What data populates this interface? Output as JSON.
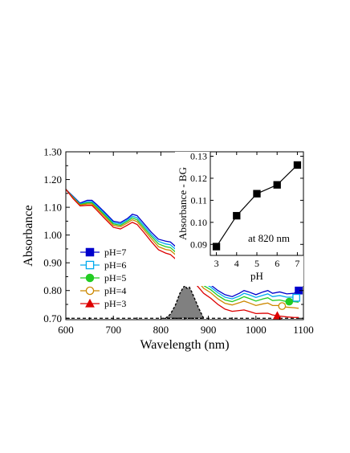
{
  "chart_data": [
    {
      "type": "line",
      "xlabel": "Wavelength (nm)",
      "ylabel": "Absorbance",
      "xlim": [
        600,
        1100
      ],
      "ylim": [
        0.695,
        1.3
      ],
      "xticks": [
        "600",
        "700",
        "800",
        "900",
        "1000",
        "1100"
      ],
      "xtick_values": [
        600,
        700,
        800,
        900,
        1000,
        1100
      ],
      "yticks": [
        "0.70",
        "0.80",
        "0.90",
        "1.00",
        "1.10",
        "1.20",
        "1.30"
      ],
      "ytick_values": [
        0.7,
        0.8,
        0.9,
        1.0,
        1.1,
        1.2,
        1.3
      ],
      "legend_position": "middle-left",
      "x": [
        600,
        615,
        630,
        645,
        655,
        665,
        680,
        700,
        715,
        730,
        740,
        750,
        765,
        780,
        795,
        810,
        820,
        830,
        845,
        860,
        875,
        890,
        905,
        920,
        935,
        950,
        965,
        975,
        985,
        1000,
        1015,
        1025,
        1035,
        1050,
        1065,
        1080,
        1090
      ],
      "series": [
        {
          "name": "pH=7",
          "color": "#0000cc",
          "marker": "filled-square",
          "values": [
            1.165,
            1.14,
            1.115,
            1.125,
            1.125,
            1.11,
            1.085,
            1.05,
            1.045,
            1.06,
            1.075,
            1.07,
            1.04,
            1.01,
            0.985,
            0.978,
            0.975,
            0.96,
            0.935,
            0.9,
            0.865,
            0.835,
            0.82,
            0.8,
            0.785,
            0.778,
            0.79,
            0.8,
            0.795,
            0.785,
            0.795,
            0.8,
            0.79,
            0.795,
            0.788,
            0.79,
            0.8
          ]
        },
        {
          "name": "pH=6",
          "color": "#00aaee",
          "marker": "open-square",
          "values": [
            1.165,
            1.138,
            1.112,
            1.12,
            1.12,
            1.105,
            1.08,
            1.045,
            1.04,
            1.055,
            1.068,
            1.062,
            1.032,
            1.002,
            0.977,
            0.968,
            0.965,
            0.95,
            0.925,
            0.892,
            0.858,
            0.828,
            0.812,
            0.792,
            0.776,
            0.77,
            0.78,
            0.79,
            0.785,
            0.775,
            0.783,
            0.788,
            0.778,
            0.782,
            0.776,
            0.776,
            0.772
          ]
        },
        {
          "name": "pH=5",
          "color": "#22cc22",
          "marker": "filled-circle",
          "values": [
            1.165,
            1.136,
            1.11,
            1.116,
            1.116,
            1.1,
            1.075,
            1.04,
            1.035,
            1.05,
            1.062,
            1.055,
            1.025,
            0.995,
            0.968,
            0.958,
            0.955,
            0.94,
            0.915,
            0.882,
            0.848,
            0.818,
            0.803,
            0.782,
            0.766,
            0.76,
            0.77,
            0.778,
            0.772,
            0.762,
            0.77,
            0.774,
            0.764,
            0.766,
            0.76,
            0.76,
            0.758
          ]
        },
        {
          "name": "pH=4",
          "color": "#cc8800",
          "marker": "open-circle",
          "values": [
            1.165,
            1.134,
            1.108,
            1.112,
            1.112,
            1.096,
            1.07,
            1.035,
            1.03,
            1.044,
            1.055,
            1.048,
            1.018,
            0.987,
            0.958,
            0.948,
            0.945,
            0.93,
            0.905,
            0.872,
            0.838,
            0.808,
            0.792,
            0.77,
            0.754,
            0.748,
            0.756,
            0.762,
            0.756,
            0.746,
            0.752,
            0.755,
            0.746,
            0.746,
            0.74,
            0.738,
            0.736
          ]
        },
        {
          "name": "pH=3",
          "color": "#dd0000",
          "marker": "filled-triangle",
          "values": [
            1.165,
            1.132,
            1.105,
            1.107,
            1.107,
            1.09,
            1.063,
            1.028,
            1.022,
            1.036,
            1.046,
            1.038,
            1.008,
            0.976,
            0.947,
            0.935,
            0.93,
            0.915,
            0.888,
            0.855,
            0.82,
            0.79,
            0.772,
            0.75,
            0.733,
            0.725,
            0.728,
            0.73,
            0.725,
            0.717,
            0.718,
            0.718,
            0.712,
            0.708,
            0.705,
            0.703,
            0.703
          ]
        }
      ],
      "laser_profile": {
        "color": "#808080",
        "x": [
          810,
          820,
          830,
          840,
          845,
          850,
          855,
          860,
          865,
          870,
          880,
          890
        ],
        "values": [
          0.7,
          0.715,
          0.745,
          0.79,
          0.805,
          0.818,
          0.808,
          0.812,
          0.795,
          0.775,
          0.735,
          0.7
        ]
      },
      "baseline": {
        "value": 0.7,
        "style": "dashed"
      }
    },
    {
      "type": "line",
      "xlabel": "pH",
      "ylabel": "Absorbance - BG",
      "annotation": "at 820 nm",
      "xlim": [
        2.7,
        7.3
      ],
      "ylim": [
        0.085,
        0.132
      ],
      "xticks": [
        "3",
        "4",
        "5",
        "6",
        "7"
      ],
      "xtick_values": [
        3,
        4,
        5,
        6,
        7
      ],
      "yticks": [
        "0.09",
        "0.10",
        "0.11",
        "0.12",
        "0.13"
      ],
      "ytick_values": [
        0.09,
        0.1,
        0.11,
        0.12,
        0.13
      ],
      "x": [
        3,
        4,
        5,
        6,
        7
      ],
      "values": [
        0.089,
        0.103,
        0.113,
        0.117,
        0.126
      ],
      "marker": "filled-square"
    }
  ]
}
